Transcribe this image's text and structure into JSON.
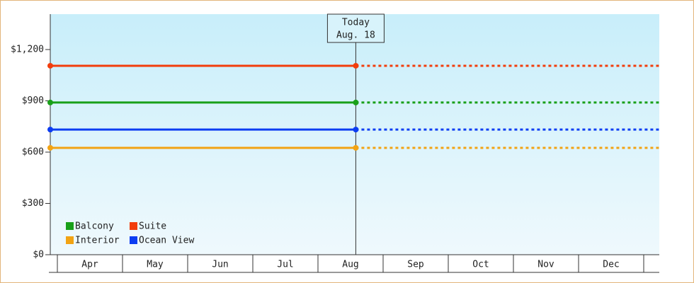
{
  "chart_data": {
    "type": "price-line",
    "categories": [
      "Apr",
      "May",
      "Jun",
      "Jul",
      "Aug",
      "Sep",
      "Oct",
      "Nov",
      "Dec"
    ],
    "today_label": "Today",
    "today_date": "Aug. 18",
    "series": [
      {
        "name": "Balcony",
        "color": "#19a019",
        "value": 890
      },
      {
        "name": "Suite",
        "color": "#f23d0c",
        "value": 1105
      },
      {
        "name": "Interior",
        "color": "#f2a313",
        "value": 625
      },
      {
        "name": "Ocean View",
        "color": "#0c3df2",
        "value": 732
      }
    ],
    "ylim": [
      0,
      1407
    ],
    "yticks": [
      {
        "value": 0,
        "label": "$0"
      },
      {
        "value": 300,
        "label": "$300"
      },
      {
        "value": 600,
        "label": "$600"
      },
      {
        "value": 900,
        "label": "$900"
      },
      {
        "value": 1200,
        "label": "$1,200"
      }
    ],
    "legend": "lower-left"
  }
}
